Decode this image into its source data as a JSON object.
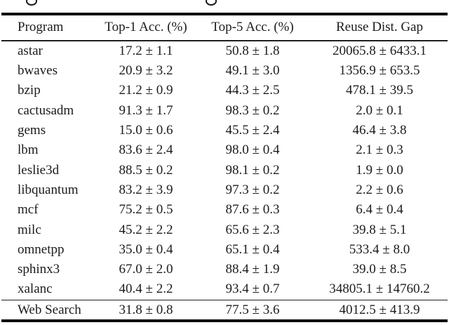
{
  "page": {
    "background_color": "#ffffff",
    "text_color": "#1c1c1c",
    "rule_color": "#0c0c0c"
  },
  "caption_remnant": {
    "description": "bottom descender loops of two cropped caption letters",
    "glyphs": [
      "g",
      "g"
    ]
  },
  "table": {
    "columns": [
      "Program",
      "Top-1 Acc. (%)",
      "Top-5 Acc. (%)",
      "Reuse Dist. Gap"
    ],
    "rows": [
      {
        "program": "astar",
        "top1": "17.2 ± 1.1",
        "top5": "50.8 ± 1.8",
        "reuse": "20065.8 ± 6433.1"
      },
      {
        "program": "bwaves",
        "top1": "20.9 ± 3.2",
        "top5": "49.1 ± 3.0",
        "reuse": "1356.9 ± 653.5"
      },
      {
        "program": "bzip",
        "top1": "21.2 ± 0.9",
        "top5": "44.3 ± 2.5",
        "reuse": "478.1 ± 39.5"
      },
      {
        "program": "cactusadm",
        "top1": "91.3 ± 1.7",
        "top5": "98.3 ± 0.2",
        "reuse": "2.0 ± 0.1"
      },
      {
        "program": "gems",
        "top1": "15.0 ± 0.6",
        "top5": "45.5 ± 2.4",
        "reuse": "46.4 ± 3.8"
      },
      {
        "program": "lbm",
        "top1": "83.6 ± 2.4",
        "top5": "98.0 ± 0.4",
        "reuse": "2.1 ± 0.3"
      },
      {
        "program": "leslie3d",
        "top1": "88.5 ± 0.2",
        "top5": "98.1 ± 0.2",
        "reuse": "1.9 ± 0.0"
      },
      {
        "program": "libquantum",
        "top1": "83.2 ± 3.9",
        "top5": "97.3 ± 0.2",
        "reuse": "2.2 ± 0.6"
      },
      {
        "program": "mcf",
        "top1": "75.2 ± 0.5",
        "top5": "87.6 ± 0.3",
        "reuse": "6.4 ± 0.4"
      },
      {
        "program": "milc",
        "top1": "45.2 ± 2.2",
        "top5": "65.6 ± 2.3",
        "reuse": "39.8 ± 5.1"
      },
      {
        "program": "omnetpp",
        "top1": "35.0 ± 0.4",
        "top5": "65.1 ± 0.4",
        "reuse": "533.4 ± 8.0"
      },
      {
        "program": "sphinx3",
        "top1": "67.0 ± 2.0",
        "top5": "88.4 ± 1.9",
        "reuse": "39.0 ± 8.5"
      },
      {
        "program": "xalanc",
        "top1": "40.4 ± 2.2",
        "top5": "93.4 ± 0.7",
        "reuse": "34805.1 ± 14760.2"
      }
    ],
    "footer_row": {
      "program": "Web Search",
      "top1": "31.8 ± 0.8",
      "top5": "77.5 ± 3.6",
      "reuse": "4012.5 ± 413.9"
    }
  }
}
